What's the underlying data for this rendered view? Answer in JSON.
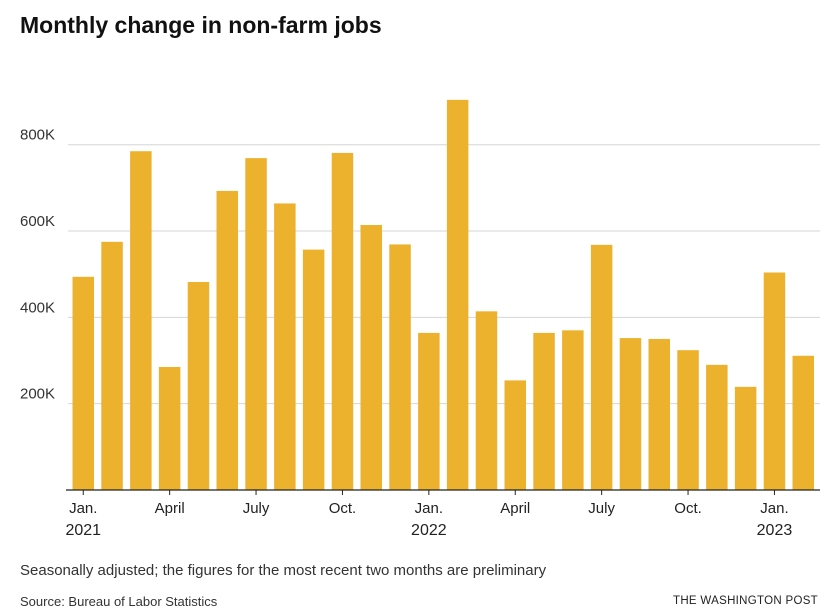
{
  "header": {
    "title": "Monthly change in non-farm jobs"
  },
  "footer": {
    "note": "Seasonally adjusted; the figures for the most recent two months are preliminary",
    "source": "Source: Bureau of Labor Statistics",
    "credit": "THE WASHINGTON POST"
  },
  "colors": {
    "bar": "#ecb22e",
    "grid": "#d6d6d6",
    "axis": "#222222"
  },
  "chart_data": {
    "type": "bar",
    "title": "Monthly change in non-farm jobs",
    "xlabel": "",
    "ylabel": "",
    "ylim": [
      0,
      950000
    ],
    "grid": true,
    "yticks": [
      {
        "value": 200000,
        "label": "200K"
      },
      {
        "value": 400000,
        "label": "400K"
      },
      {
        "value": 600000,
        "label": "600K"
      },
      {
        "value": 800000,
        "label": "800K"
      }
    ],
    "categories": [
      "Jan. 2021",
      "Feb. 2021",
      "Mar. 2021",
      "Apr. 2021",
      "May 2021",
      "Jun. 2021",
      "Jul. 2021",
      "Aug. 2021",
      "Sep. 2021",
      "Oct. 2021",
      "Nov. 2021",
      "Dec. 2021",
      "Jan. 2022",
      "Feb. 2022",
      "Mar. 2022",
      "Apr. 2022",
      "May 2022",
      "Jun. 2022",
      "Jul. 2022",
      "Aug. 2022",
      "Sep. 2022",
      "Oct. 2022",
      "Nov. 2022",
      "Dec. 2022",
      "Jan. 2023",
      "Feb. 2023"
    ],
    "values": [
      494000,
      575000,
      785000,
      285000,
      482000,
      693000,
      769000,
      664000,
      557000,
      781000,
      614000,
      569000,
      364000,
      904000,
      414000,
      254000,
      364000,
      370000,
      568000,
      352000,
      350000,
      324000,
      290000,
      239000,
      504000,
      311000
    ],
    "xticks": [
      {
        "index": 0,
        "label": "Jan.",
        "year": "2021"
      },
      {
        "index": 3,
        "label": "April",
        "year": ""
      },
      {
        "index": 6,
        "label": "July",
        "year": ""
      },
      {
        "index": 9,
        "label": "Oct.",
        "year": ""
      },
      {
        "index": 12,
        "label": "Jan.",
        "year": "2022"
      },
      {
        "index": 15,
        "label": "April",
        "year": ""
      },
      {
        "index": 18,
        "label": "July",
        "year": ""
      },
      {
        "index": 21,
        "label": "Oct.",
        "year": ""
      },
      {
        "index": 24,
        "label": "Jan.",
        "year": "2023"
      }
    ]
  }
}
